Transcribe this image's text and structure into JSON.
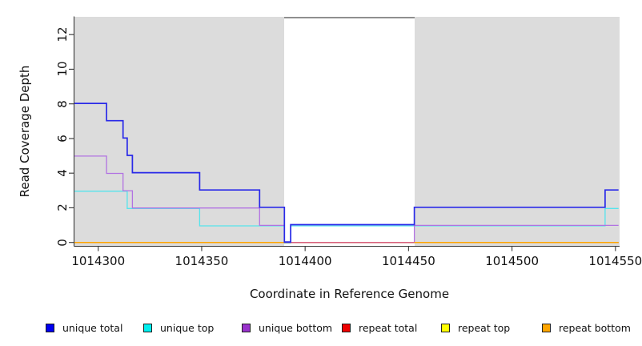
{
  "figure": {
    "kind": "R step plot of read coverage",
    "background": "#FFFFFF"
  },
  "chart_data": {
    "type": "line",
    "subtype": "step",
    "title": "",
    "xlabel": "Coordinate in Reference Genome",
    "ylabel": "Read Coverage Depth",
    "xlim": [
      1014288.5,
      1014552
    ],
    "ylim": [
      -0.2,
      13.05
    ],
    "x_end": 1014551.5,
    "x_ticks": [
      1014300,
      1014350,
      1014400,
      1014450,
      1014500,
      1014550
    ],
    "x_tick_labels": [
      "1014300",
      "1014350",
      "1014400",
      "1014450",
      "1014500",
      "1014550"
    ],
    "y_ticks": [
      0,
      2,
      4,
      6,
      8,
      10,
      12
    ],
    "y_tick_labels": [
      "0",
      "2",
      "4",
      "6",
      "8",
      "10",
      "12"
    ],
    "grid": "off",
    "plot_background": "#DCDCDC",
    "axis_color": "#3a3a3a",
    "highlight_region": {
      "note": "white repeat-masked band",
      "x1": 1014389.8,
      "x2": 1014452.8,
      "fill": "#FFFFFF",
      "top_border": "#8F8F8F",
      "baseline_color": "#D8607E"
    },
    "series": [
      {
        "name": "unique total",
        "legend_color": "#0000F0",
        "line_color": "#2929E8",
        "width": 1.7,
        "steps": [
          [
            1014288.5,
            8
          ],
          [
            1014304,
            7
          ],
          [
            1014312,
            6
          ],
          [
            1014314,
            5
          ],
          [
            1014316.5,
            4
          ],
          [
            1014349,
            3
          ],
          [
            1014378,
            2
          ],
          [
            1014390,
            0
          ],
          [
            1014393,
            1
          ],
          [
            1014452.8,
            2
          ],
          [
            1014545,
            3
          ]
        ]
      },
      {
        "name": "unique top",
        "legend_color": "#00EEEE",
        "line_color": "#55E4EC",
        "width": 1.3,
        "steps": [
          [
            1014288.5,
            3
          ],
          [
            1014314,
            2
          ],
          [
            1014349,
            1
          ],
          [
            1014390,
            0
          ],
          [
            1014393,
            1
          ],
          [
            1014545,
            2
          ]
        ]
      },
      {
        "name": "unique bottom",
        "legend_color": "#9932CC",
        "line_color": "#B272E2",
        "width": 1.3,
        "steps": [
          [
            1014288.5,
            5
          ],
          [
            1014304,
            4
          ],
          [
            1014312,
            3
          ],
          [
            1014316.5,
            2
          ],
          [
            1014378,
            1
          ],
          [
            1014390,
            0
          ],
          [
            1014452.8,
            1
          ]
        ]
      },
      {
        "name": "repeat total",
        "legend_color": "#EE0000",
        "line_color": "#EE0000",
        "width": 1.2,
        "steps": [
          [
            1014288.5,
            0
          ]
        ]
      },
      {
        "name": "repeat top",
        "legend_color": "#FFFF00",
        "line_color": "#FFFF00",
        "width": 1.0,
        "steps": [
          [
            1014288.5,
            0
          ]
        ]
      },
      {
        "name": "repeat bottom",
        "legend_color": "#FFA500",
        "line_color": "#FFA500",
        "width": 1.5,
        "steps": [
          [
            1014288.5,
            0
          ]
        ]
      }
    ],
    "legend_position": "bottom"
  },
  "legend": {
    "items": [
      {
        "label": "unique total"
      },
      {
        "label": "unique top"
      },
      {
        "label": "unique bottom"
      },
      {
        "label": "repeat total"
      },
      {
        "label": "repeat top"
      },
      {
        "label": "repeat bottom"
      }
    ]
  }
}
